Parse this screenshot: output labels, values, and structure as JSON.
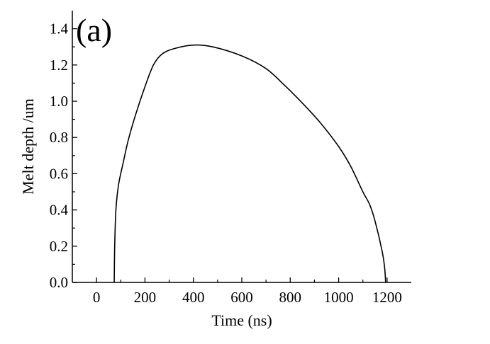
{
  "chart_data": {
    "type": "line",
    "panel_label": "(a)",
    "title": "",
    "xlabel": "Time (ns)",
    "ylabel": "Melt depth /um",
    "xlim": [
      -100,
      1300
    ],
    "ylim": [
      0,
      1.5
    ],
    "xticks": [
      0,
      200,
      400,
      600,
      800,
      1000,
      1200
    ],
    "yticks": [
      0.0,
      0.2,
      0.4,
      0.6,
      0.8,
      1.0,
      1.2,
      1.4
    ],
    "xtick_labels": [
      "0",
      "200",
      "400",
      "600",
      "800",
      "1000",
      "1200"
    ],
    "ytick_labels": [
      "0.0",
      "0.2",
      "0.4",
      "0.6",
      "0.8",
      "1.0",
      "1.2",
      "1.4"
    ],
    "grid": false,
    "legend": "none",
    "line_color": "#000000",
    "series": [
      {
        "x": [
          73,
          75,
          80,
          91,
          110,
          130,
          160,
          200,
          235,
          270,
          320,
          400,
          480,
          600,
          700,
          775,
          850,
          925,
          1000,
          1050,
          1100,
          1128,
          1150,
          1180,
          1190,
          1194
        ],
        "y": [
          0,
          0.2,
          0.4,
          0.54,
          0.66,
          0.78,
          0.92,
          1.08,
          1.2,
          1.26,
          1.29,
          1.31,
          1.3,
          1.25,
          1.18,
          1.09,
          0.99,
          0.88,
          0.75,
          0.64,
          0.5,
          0.43,
          0.34,
          0.17,
          0.08,
          0
        ]
      }
    ]
  }
}
